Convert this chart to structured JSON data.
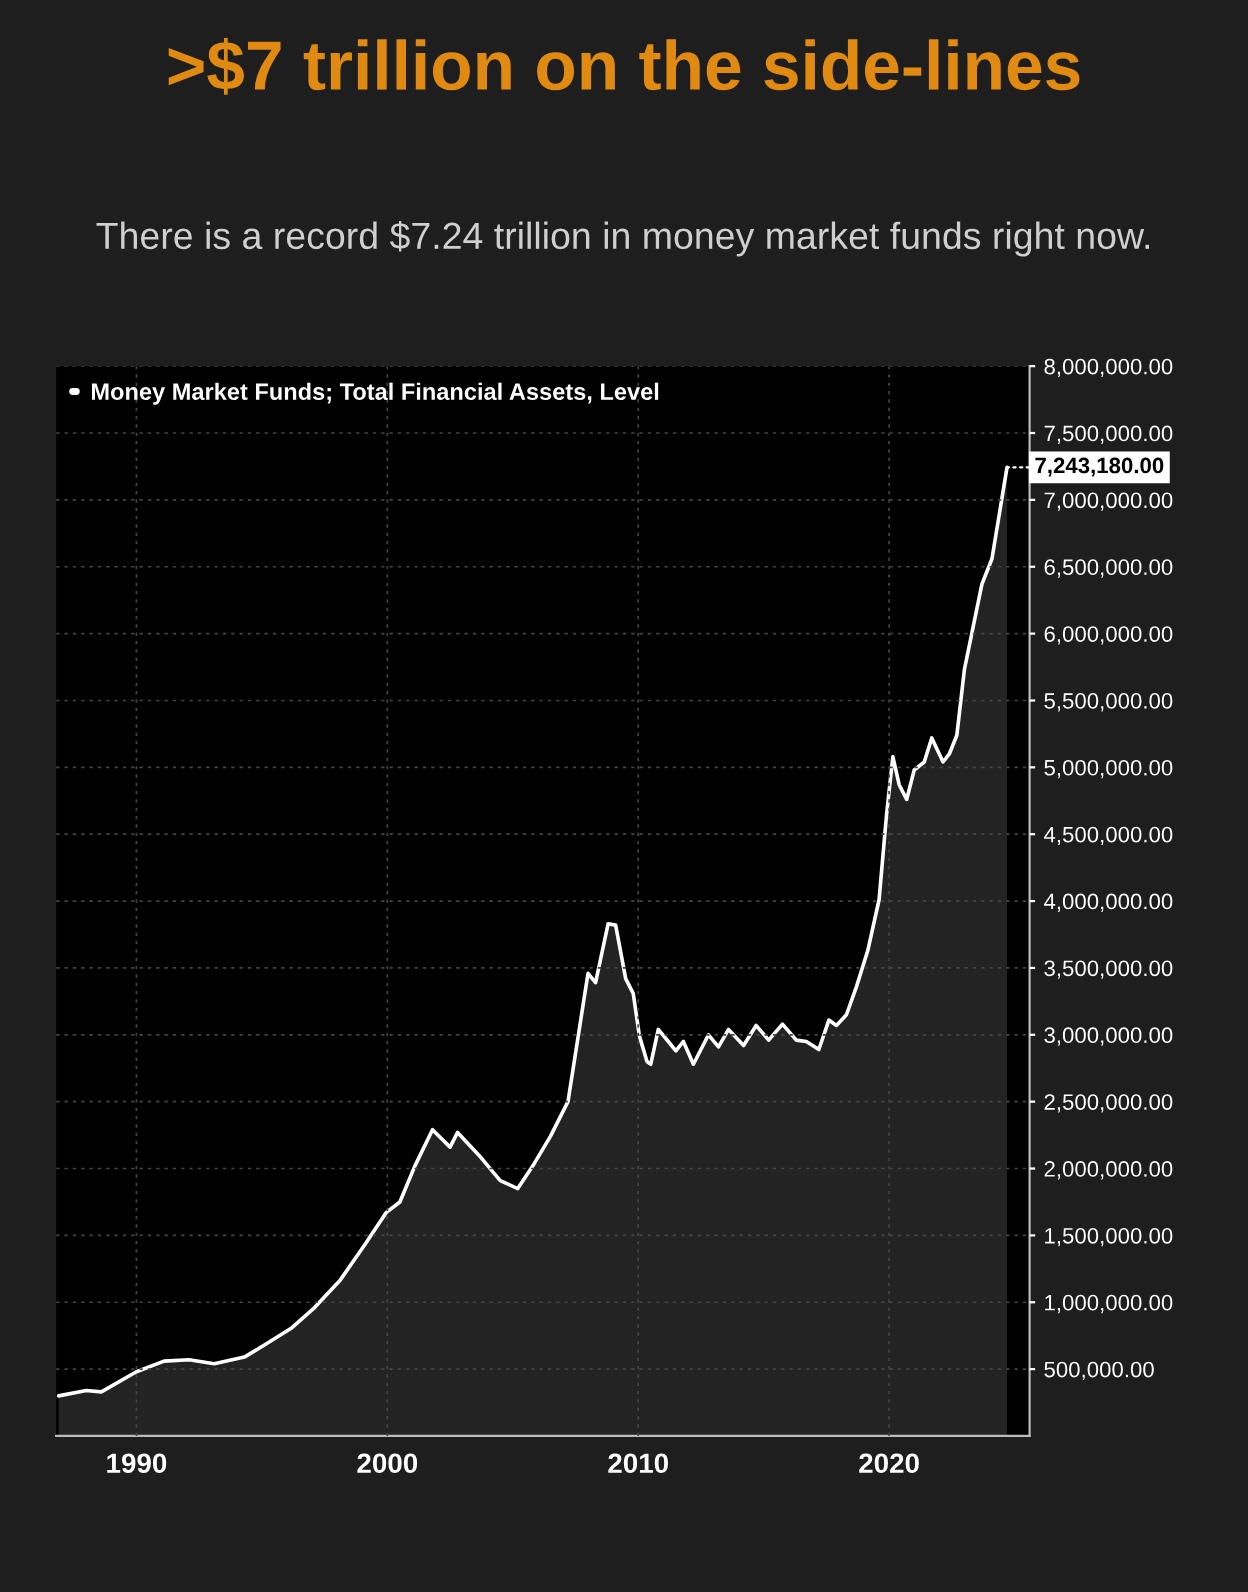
{
  "chart_data": {
    "type": "area",
    "title": ">$7 trillion on the side-lines",
    "subtitle": "There is a record $7.24 trillion in money market funds right now.",
    "x": [
      1986.9,
      1988.0,
      1988.6,
      1990.0,
      1991.1,
      1992.1,
      1993.1,
      1994.3,
      1995.1,
      1996.2,
      1997.1,
      1998.1,
      1999.1,
      1999.95,
      2000.5,
      2001.1,
      2001.8,
      2002.5,
      2002.8,
      2003.65,
      2004.5,
      2005.2,
      2005.8,
      2006.5,
      2007.2,
      2008.0,
      2008.3,
      2008.8,
      2009.1,
      2009.5,
      2009.8,
      2010.05,
      2010.35,
      2010.5,
      2010.8,
      2011.2,
      2011.5,
      2011.8,
      2012.2,
      2012.8,
      2013.2,
      2013.6,
      2014.2,
      2014.7,
      2015.2,
      2015.75,
      2016.3,
      2016.7,
      2017.2,
      2017.6,
      2017.9,
      2018.3,
      2018.7,
      2019.15,
      2019.6,
      2019.9,
      2020.15,
      2020.4,
      2020.7,
      2021.0,
      2021.4,
      2021.7,
      2022.15,
      2022.4,
      2022.7,
      2023.0,
      2023.7,
      2024.1,
      2024.7
    ],
    "series": [
      {
        "name": "Money Market Funds; Total Financial Assets, Level",
        "color": "#ffffff",
        "values": [
          300000,
          340000,
          330000,
          480000,
          560000,
          570000,
          540000,
          590000,
          680000,
          810000,
          960000,
          1160000,
          1430000,
          1670000,
          1750000,
          2020000,
          2290000,
          2160000,
          2270000,
          2100000,
          1910000,
          1850000,
          2020000,
          2240000,
          2500000,
          3460000,
          3390000,
          3830000,
          3820000,
          3420000,
          3310000,
          2990000,
          2800000,
          2780000,
          3040000,
          2950000,
          2880000,
          2950000,
          2780000,
          3000000,
          2910000,
          3040000,
          2920000,
          3070000,
          2960000,
          3080000,
          2960000,
          2950000,
          2890000,
          3110000,
          3070000,
          3150000,
          3360000,
          3630000,
          4010000,
          4650000,
          5080000,
          4870000,
          4760000,
          4980000,
          5040000,
          5220000,
          5040000,
          5100000,
          5240000,
          5730000,
          6370000,
          6560000,
          7243180
        ]
      }
    ],
    "xlim": [
      1986.8,
      2025.6
    ],
    "xticks": [
      1990,
      2000,
      2010,
      2020
    ],
    "ylim": [
      0,
      8000000
    ],
    "yticks": [
      {
        "value": 500000,
        "label": "500,000.00"
      },
      {
        "value": 1000000,
        "label": "1,000,000.00"
      },
      {
        "value": 1500000,
        "label": "1,500,000.00"
      },
      {
        "value": 2000000,
        "label": "2,000,000.00"
      },
      {
        "value": 2500000,
        "label": "2,500,000.00"
      },
      {
        "value": 3000000,
        "label": "3,000,000.00"
      },
      {
        "value": 3500000,
        "label": "3,500,000.00"
      },
      {
        "value": 4000000,
        "label": "4,000,000.00"
      },
      {
        "value": 4500000,
        "label": "4,500,000.00"
      },
      {
        "value": 5000000,
        "label": "5,000,000.00"
      },
      {
        "value": 5500000,
        "label": "5,500,000.00"
      },
      {
        "value": 6000000,
        "label": "6,000,000.00"
      },
      {
        "value": 6500000,
        "label": "6,500,000.00"
      },
      {
        "value": 7000000,
        "label": "7,000,000.00"
      },
      {
        "value": 7500000,
        "label": "7,500,000.00"
      },
      {
        "value": 8000000,
        "label": "8,000,000.00"
      }
    ],
    "annotations": [
      {
        "text": "7,243,180.00",
        "x": 2024.7,
        "y": 7243180
      }
    ],
    "grid": true,
    "legend": "top left"
  }
}
